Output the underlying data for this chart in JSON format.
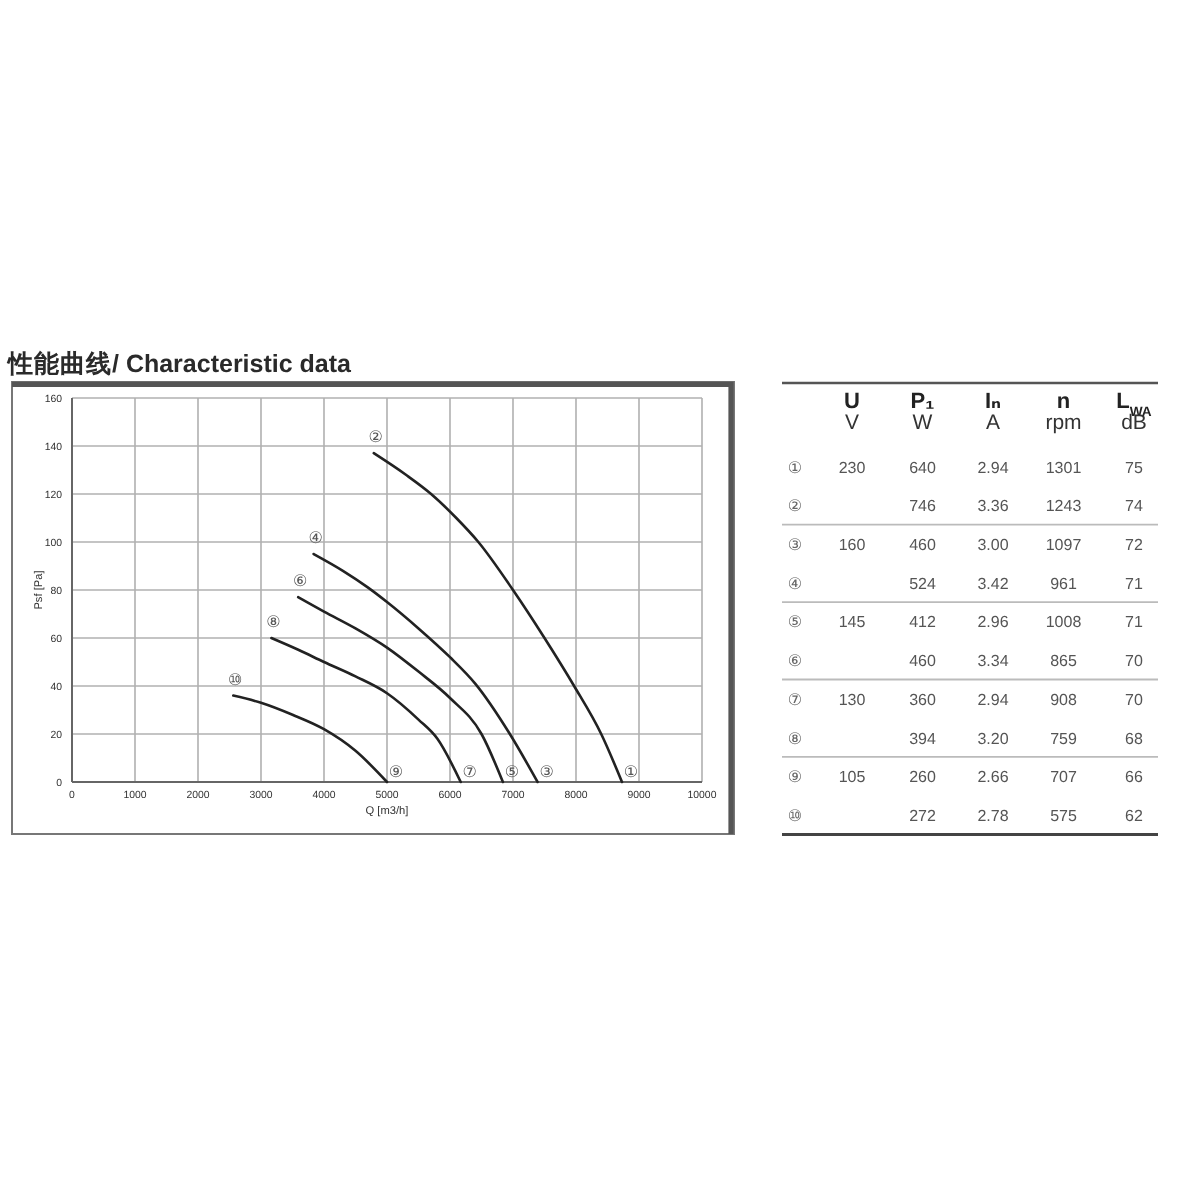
{
  "chart_data": [
    {
      "type": "line",
      "title": "性能曲线/ Characteristic data",
      "xlabel": "Q [m3/h]",
      "ylabel": "Psf [Pa]",
      "xlim": [
        0,
        10000
      ],
      "xticks": [
        0,
        1000,
        2000,
        3000,
        4000,
        5000,
        6000,
        7000,
        8000,
        9000,
        10000
      ],
      "ylim": [
        0,
        160
      ],
      "yticks": [
        0,
        20,
        40,
        60,
        80,
        100,
        120,
        140,
        160
      ],
      "grid": true,
      "series": [
        {
          "color": "#222222",
          "x": [
            4790,
            5300,
            5700,
            6100,
            6450,
            7000,
            7500,
            7970,
            8400,
            8730
          ],
          "values": [
            137,
            128,
            120,
            110,
            100,
            80,
            60,
            40,
            20,
            0
          ]
        },
        {
          "color": "#222222",
          "x": [
            3835,
            4300,
            4700,
            5000,
            5500,
            6000,
            6400,
            6950,
            7390
          ],
          "values": [
            95,
            88,
            81,
            75,
            64,
            52,
            41,
            20,
            0
          ]
        },
        {
          "color": "#222222",
          "x": [
            3590,
            4000,
            4500,
            5000,
            5500,
            6000,
            6500,
            6840
          ],
          "values": [
            77,
            71,
            64,
            56,
            46,
            35,
            20,
            0
          ]
        },
        {
          "color": "#222222",
          "x": [
            3165,
            3600,
            4000,
            4500,
            5000,
            5500,
            5800,
            6170
          ],
          "values": [
            60,
            55,
            50,
            44,
            37,
            26,
            18,
            0
          ]
        },
        {
          "color": "#222222",
          "x": [
            2560,
            3000,
            3500,
            4000,
            4500,
            5000
          ],
          "values": [
            36,
            33,
            28,
            22,
            13,
            0
          ]
        }
      ],
      "annotations": [
        {
          "text": "②",
          "x": 4790,
          "y": 137
        },
        {
          "text": "④",
          "x": 3835,
          "y": 95
        },
        {
          "text": "⑥",
          "x": 3590,
          "y": 77
        },
        {
          "text": "⑧",
          "x": 3165,
          "y": 60
        },
        {
          "text": "⑩",
          "x": 2560,
          "y": 36
        },
        {
          "text": "⑨",
          "x": 5000,
          "y": 0
        },
        {
          "text": "⑦",
          "x": 6170,
          "y": 0
        },
        {
          "text": "⑤",
          "x": 6840,
          "y": 0
        },
        {
          "text": "③",
          "x": 7390,
          "y": 0
        },
        {
          "text": "①",
          "x": 8730,
          "y": 0
        }
      ]
    },
    {
      "type": "other",
      "categories": [
        "①",
        "②",
        "③",
        "④",
        "⑤",
        "⑥",
        "⑦",
        "⑧",
        "⑨",
        "⑩"
      ],
      "data_labels": true,
      "series": [
        {
          "name": "U",
          "values": [
            230,
            null,
            160,
            null,
            145,
            null,
            130,
            null,
            105,
            null
          ]
        },
        {
          "name": "P₁",
          "values": [
            640,
            746,
            460,
            524,
            412,
            460,
            360,
            394,
            260,
            272
          ]
        },
        {
          "name": "Iₙ",
          "values": [
            2.94,
            3.36,
            3.0,
            3.42,
            2.96,
            3.34,
            2.94,
            3.2,
            2.66,
            2.78
          ],
          "value_labels": [
            "2.94",
            "3.36",
            "3.00",
            "3.42",
            "2.96",
            "3.34",
            "2.94",
            "3.20",
            "2.66",
            "2.78"
          ]
        },
        {
          "name": "n",
          "values": [
            1301,
            1243,
            1097,
            961,
            1008,
            865,
            908,
            759,
            707,
            575
          ]
        },
        {
          "name": "L$_{WA}$",
          "values": [
            75,
            74,
            72,
            71,
            71,
            70,
            70,
            68,
            66,
            62
          ]
        }
      ],
      "annotations": [
        "V",
        "W",
        "A",
        "rpm",
        "dB"
      ]
    }
  ]
}
